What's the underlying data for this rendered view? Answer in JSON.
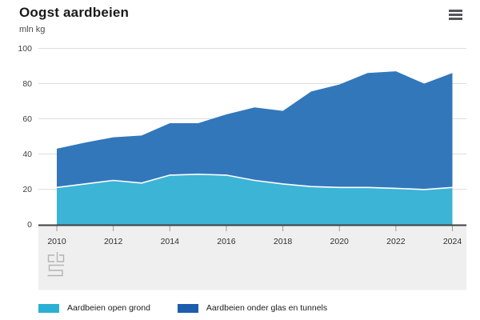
{
  "header": {
    "menu_tooltip": "menu"
  },
  "chart_data": {
    "type": "area",
    "stacked": true,
    "title": "Oogst aardbeien",
    "ylabel": "mln kg",
    "xlabel": "",
    "x": [
      2010,
      2011,
      2012,
      2013,
      2014,
      2015,
      2016,
      2017,
      2018,
      2019,
      2020,
      2021,
      2022,
      2023,
      2024
    ],
    "x_tick_labels": [
      "2010",
      "2012",
      "2014",
      "2016",
      "2018",
      "2020",
      "2022",
      "2024"
    ],
    "y_ticks": [
      0,
      20,
      40,
      60,
      80,
      100
    ],
    "ylim": [
      0,
      100
    ],
    "grid": "horizontal-only",
    "legend_position": "bottom",
    "series": [
      {
        "name": "Aardbeien open grond",
        "legend_color": "#2bb0d4",
        "area_color": "#3cb4d6",
        "values": [
          21,
          23,
          25,
          23.5,
          28,
          28.5,
          28,
          25,
          23,
          21.5,
          21,
          21,
          20.5,
          19.8,
          21
        ]
      },
      {
        "name": "Aardbeien onder glas en tunnels",
        "legend_color": "#1d5dad",
        "area_color": "#3377bb",
        "values": [
          22,
          23.5,
          24.5,
          27,
          29.5,
          29,
          34.5,
          41.5,
          41.5,
          54,
          58.5,
          65,
          66.5,
          60.2,
          65
        ]
      }
    ],
    "stacked_totals": [
      43,
      46.5,
      49.5,
      50.5,
      57.5,
      57.5,
      62.5,
      66.5,
      64.5,
      75.5,
      79.5,
      86,
      87,
      80,
      86
    ]
  },
  "style": {
    "axis_color": "#404040",
    "grid_color": "#dedede",
    "band_color": "#efefef",
    "tick_color": "#9b9b9b",
    "boundary_color": "#ffffff",
    "text_color": "#3f3f3f",
    "xlabel_color": "#303030",
    "logo_color": "#b4b4b4"
  }
}
